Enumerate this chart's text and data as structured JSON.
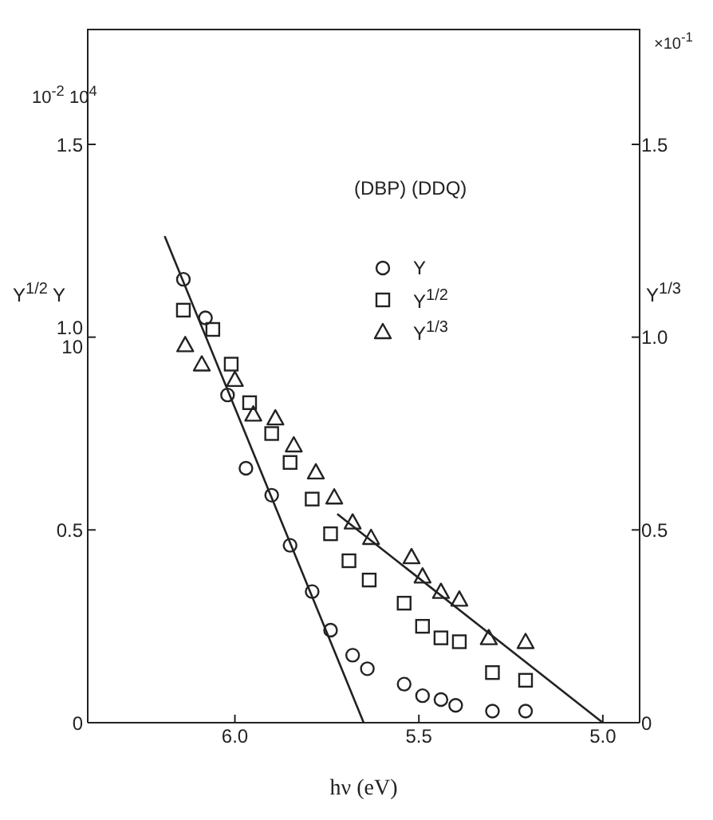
{
  "chart_data": {
    "type": "scatter",
    "xlabel": "hν (eV)",
    "ylabel": "Y$^{1/2}$ Y",
    "y2label": "Y$^{1/3}$",
    "annotations": [
      "10$^{-2}$ 10$^{4}$",
      "×10$^{-1}$",
      "(DBP) (DDQ)"
    ],
    "xlim": [
      6.4,
      4.9
    ],
    "xticks": [
      {
        "value": 6,
        "label": "6.0"
      },
      {
        "value": 5.5,
        "label": "5.5"
      },
      {
        "value": 5,
        "label": "5.0"
      }
    ],
    "ylim": [
      0,
      1.8
    ],
    "yticks": [
      0,
      0.5,
      {
        "value": 1,
        "label": "1.0 10"
      },
      1.5
    ],
    "y2lim": [
      0,
      1.8
    ],
    "y2ticks": [
      0,
      0.5,
      {
        "value": 1,
        "label": "1.0"
      },
      1.5
    ],
    "legend": "top right",
    "series": [
      {
        "name": "Y",
        "marker": "circle",
        "color": "#222222",
        "x": [
          6.14,
          6.08,
          6.02,
          5.97,
          5.9,
          5.85,
          5.79,
          5.74,
          5.68,
          5.64,
          5.54,
          5.49,
          5.44,
          5.4,
          5.3,
          5.21
        ],
        "values": [
          1.15,
          1.05,
          0.85,
          0.66,
          0.59,
          0.46,
          0.34,
          0.24,
          0.175,
          0.14,
          0.1,
          0.07,
          0.06,
          0.045,
          0.03,
          0.03
        ]
      },
      {
        "name": "Y$^{1/2}$",
        "marker": "square",
        "color": "#222222",
        "x": [
          6.14,
          6.06,
          6.01,
          5.96,
          5.9,
          5.85,
          5.79,
          5.74,
          5.69,
          5.635,
          5.54,
          5.49,
          5.44,
          5.39,
          5.3,
          5.21
        ],
        "values": [
          1.07,
          1.02,
          0.93,
          0.83,
          0.75,
          0.675,
          0.58,
          0.49,
          0.42,
          0.37,
          0.31,
          0.25,
          0.22,
          0.21,
          0.13,
          0.11
        ]
      },
      {
        "name": "Y$^{1/3}$",
        "marker": "triangle",
        "color": "#222222",
        "x": [
          6.135,
          6.09,
          6.0,
          5.95,
          5.89,
          5.84,
          5.78,
          5.73,
          5.68,
          5.63,
          5.52,
          5.49,
          5.44,
          5.39,
          5.31,
          5.21
        ],
        "values": [
          0.98,
          0.93,
          0.89,
          0.8,
          0.79,
          0.72,
          0.65,
          0.585,
          0.52,
          0.48,
          0.43,
          0.38,
          0.34,
          0.32,
          0.22,
          0.21
        ]
      },
      {
        "type": "line",
        "marker": "none",
        "color": "#222222",
        "x": [
          6.19,
          5.65
        ],
        "values": [
          1.26,
          0
        ]
      },
      {
        "type": "line",
        "marker": "none",
        "color": "#222222",
        "x": [
          5.72,
          5.0
        ],
        "values": [
          0.54,
          0
        ]
      }
    ]
  }
}
